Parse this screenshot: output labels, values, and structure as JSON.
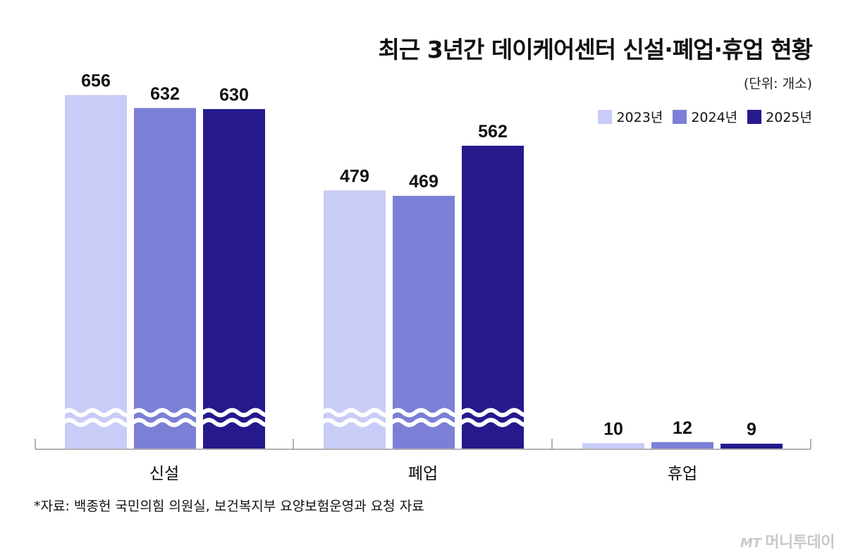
{
  "title": "최근 3년간 데이케어센터 신설·폐업·휴업 현황",
  "unit": "(단위: 개소)",
  "source": "*자료: 백종헌 국민의힘 의원실, 보건복지부 요양보험운영과 요청 자료",
  "watermark": {
    "logo": "MT",
    "name": "머니투데이"
  },
  "colors": {
    "2023년": "#c8ccf7",
    "2024년": "#7b80d6",
    "2025년": "#25198c",
    "axis": "#999999"
  },
  "chart_data": {
    "type": "bar",
    "title": "최근 3년간 데이케어센터 신설·폐업·휴업 현황",
    "categories": [
      "신설",
      "폐업",
      "휴업"
    ],
    "series": [
      {
        "name": "2023년",
        "values": [
          656,
          479,
          10
        ]
      },
      {
        "name": "2024년",
        "values": [
          632,
          469,
          12
        ]
      },
      {
        "name": "2025년",
        "values": [
          630,
          562,
          9
        ]
      }
    ],
    "axis_break": true,
    "legend_position": "top-right",
    "grid": false
  }
}
